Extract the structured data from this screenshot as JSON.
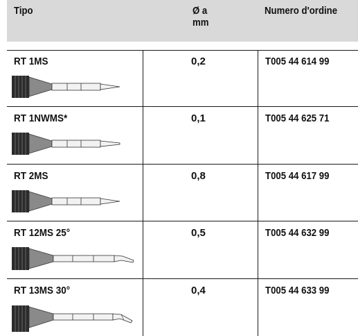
{
  "header": {
    "col_type": "Tipo",
    "col_diameter_line1": "Ø a",
    "col_diameter_line2": "mm",
    "col_order": "Numero d'ordine"
  },
  "rows": [
    {
      "type": "RT 1MS",
      "diameter": "0,2",
      "order": "T005 44 614 99",
      "icon": "straight-pointed-tip-icon"
    },
    {
      "type": "RT 1NWMS*",
      "diameter": "0,1",
      "order": "T005 44 625 71",
      "icon": "straight-pointed-tip-icon"
    },
    {
      "type": "RT 2MS",
      "diameter": "0,8",
      "order": "T005 44 617 99",
      "icon": "straight-pointed-tip-icon"
    },
    {
      "type": "RT 12MS 25°",
      "diameter": "0,5",
      "order": "T005 44 632 99",
      "icon": "bent-tip-icon"
    },
    {
      "type": "RT 13MS 30°",
      "diameter": "0,4",
      "order": "T005 44 633 99",
      "icon": "bent-tip-icon"
    }
  ],
  "colors": {
    "header_bg": "#d9d9d9",
    "rule": "#1a1a1a",
    "text": "#111111"
  }
}
